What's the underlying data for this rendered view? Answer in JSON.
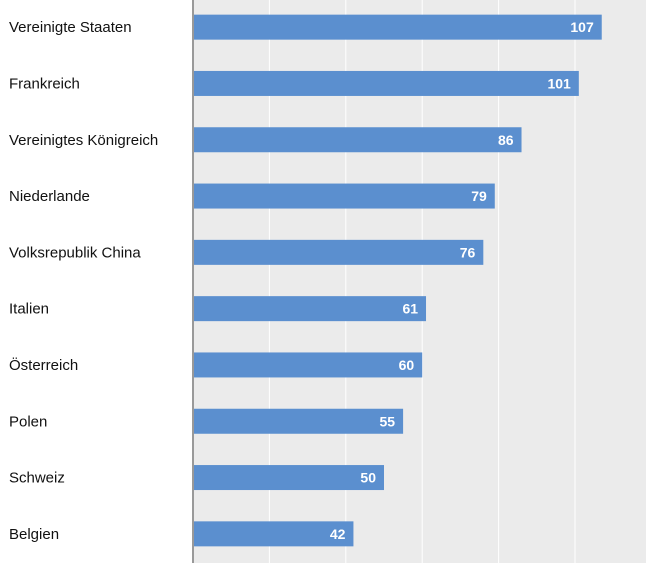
{
  "chart_data": {
    "type": "bar",
    "orientation": "horizontal",
    "categories": [
      "Vereinigte Staaten",
      "Frankreich",
      "Vereinigtes Königreich",
      "Niederlande",
      "Volksrepublik China",
      "Italien",
      "Österreich",
      "Polen",
      "Schweiz",
      "Belgien"
    ],
    "values": [
      107,
      101,
      86,
      79,
      76,
      61,
      60,
      55,
      50,
      42
    ],
    "value_labels": [
      "107",
      "101",
      "86",
      "79",
      "76",
      "61",
      "60",
      "55",
      "50",
      "42"
    ],
    "xlim": [
      0,
      120
    ],
    "grid": true,
    "colors": {
      "bar": "#5b8fcf",
      "plot_background": "#ebebeb",
      "gridline": "#ffffff",
      "axis": "#999999"
    }
  }
}
